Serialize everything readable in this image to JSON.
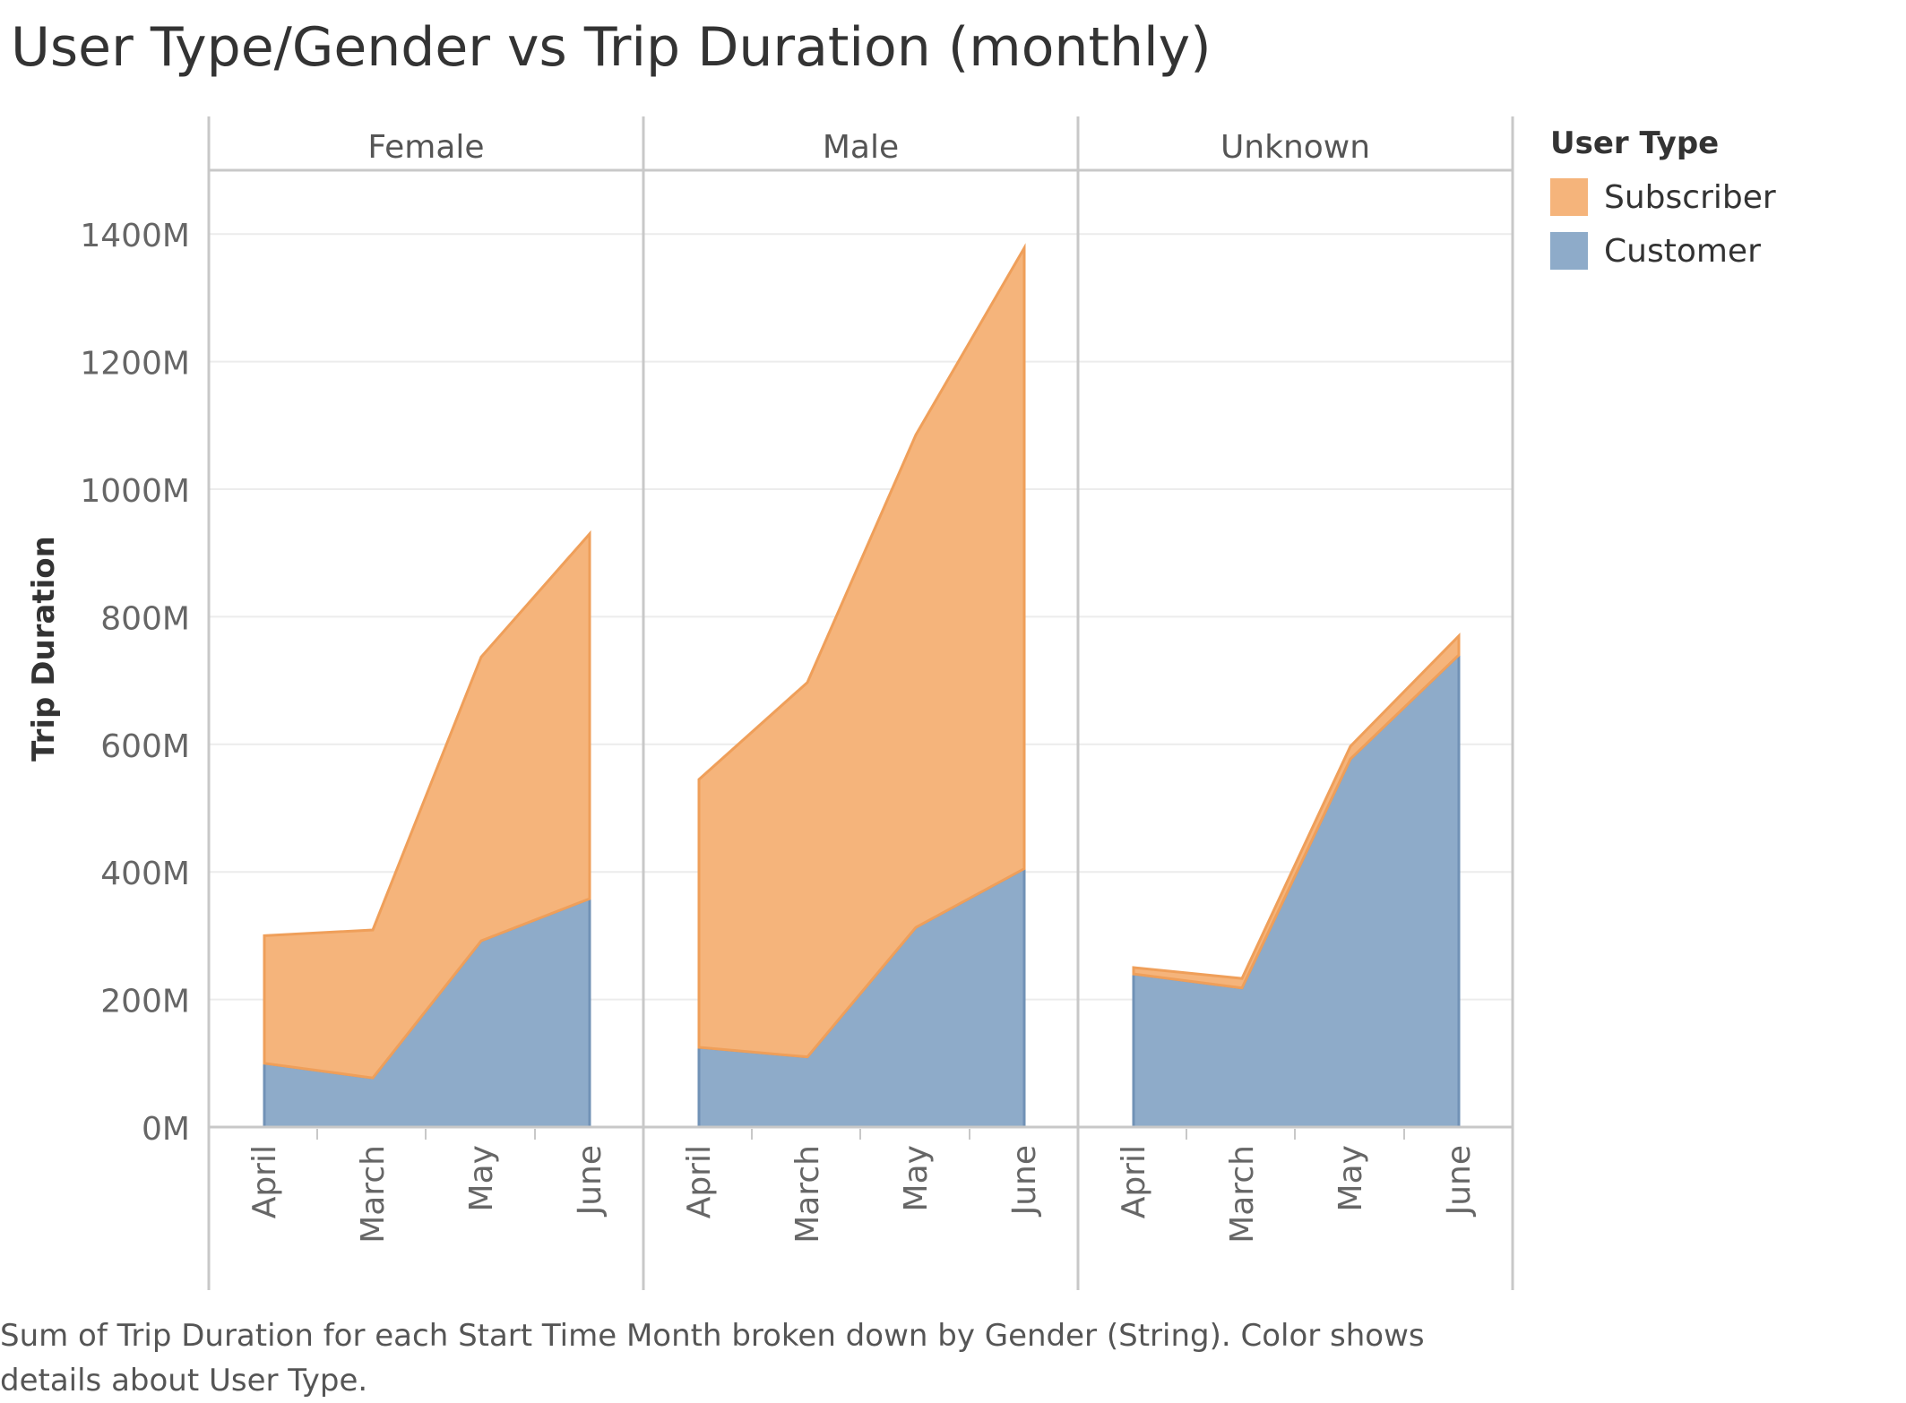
{
  "chart_data": {
    "type": "area",
    "stacked": true,
    "title": "User Type/Gender vs Trip Duration (monthly)",
    "ylabel": "Trip Duration",
    "xlabel": "",
    "ylim": [
      0,
      1500
    ],
    "yticks": [
      0,
      200,
      400,
      600,
      800,
      1000,
      1200,
      1400
    ],
    "ytick_labels": [
      "0M",
      "200M",
      "400M",
      "600M",
      "800M",
      "1000M",
      "1200M",
      "1400M"
    ],
    "categories": [
      "April",
      "March",
      "May",
      "June"
    ],
    "grid": true,
    "legend_title": "User Type",
    "legend_position": "right",
    "legend": [
      {
        "name": "Subscriber",
        "color": "#f5b47b"
      },
      {
        "name": "Customer",
        "color": "#8eabc9"
      }
    ],
    "panels": [
      {
        "name": "Female",
        "series": [
          {
            "name": "Customer",
            "values": [
              100,
              77,
              292,
              358
            ]
          },
          {
            "name": "Subscriber",
            "values": [
              200,
              232,
              445,
              572
            ]
          }
        ]
      },
      {
        "name": "Male",
        "series": [
          {
            "name": "Customer",
            "values": [
              125,
              110,
              313,
              405
            ]
          },
          {
            "name": "Subscriber",
            "values": [
              420,
              587,
              772,
              973
            ]
          }
        ]
      },
      {
        "name": "Unknown",
        "series": [
          {
            "name": "Customer",
            "values": [
              240,
              218,
              577,
              740
            ]
          },
          {
            "name": "Subscriber",
            "values": [
              10,
              15,
              20,
              30
            ]
          }
        ]
      }
    ]
  },
  "caption": "Sum of Trip Duration for each Start Time Month broken down by Gender (String).  Color shows details about User Type.",
  "colors": {
    "subscriber_fill": "#f5b47b",
    "subscriber_stroke": "#ef9f5a",
    "customer_fill": "#8eabc9",
    "customer_stroke": "#7192b6",
    "grid": "#ececec",
    "axis": "#c8c8c8"
  }
}
